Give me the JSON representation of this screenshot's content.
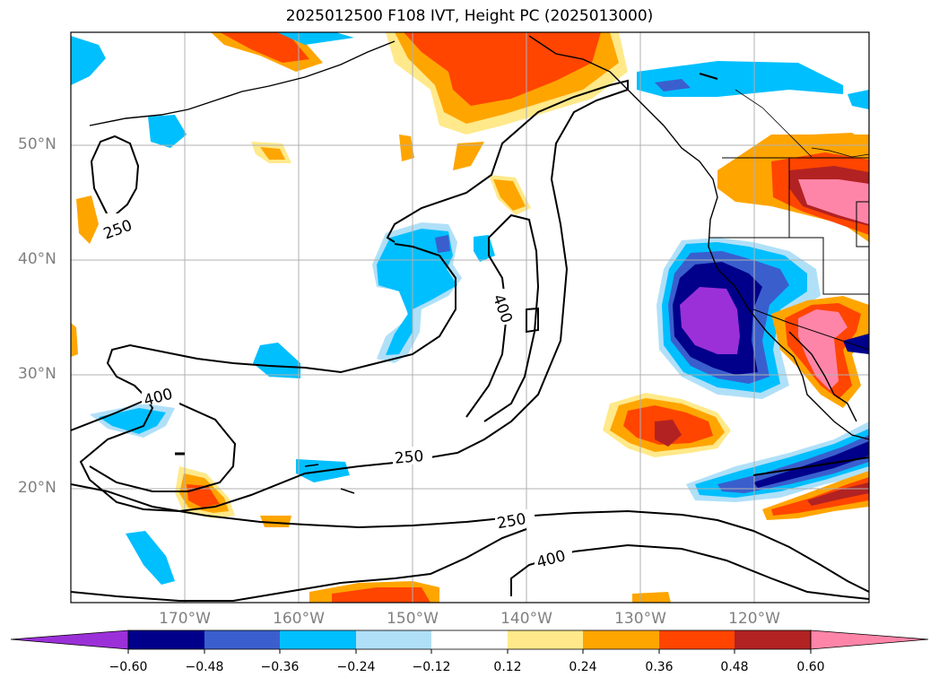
{
  "title": "2025012500 F108 IVT, Height PC (2025013000)",
  "lat_labels": [
    "50°N",
    "40°N",
    "30°N",
    "20°N"
  ],
  "lon_labels": [
    "170°W",
    "160°W",
    "150°W",
    "140°W",
    "130°W",
    "120°W"
  ],
  "contour_labels": [
    "250",
    "400",
    "400",
    "250",
    "250",
    "400"
  ],
  "colorbar": {
    "ticks": [
      "−0.60",
      "−0.48",
      "−0.36",
      "−0.24",
      "−0.12",
      "0.12",
      "0.24",
      "0.36",
      "0.48",
      "0.60"
    ],
    "colors": [
      "#9b30d8",
      "#00008b",
      "#3a5fcd",
      "#00bfff",
      "#b0e0f8",
      "#ffffff",
      "#ffe98a",
      "#ffa500",
      "#ff4500",
      "#b22222",
      "#ff85a8"
    ]
  },
  "colors": {
    "grid": "#b0b0b0",
    "coast": "#000000",
    "labels": "#808080"
  }
}
